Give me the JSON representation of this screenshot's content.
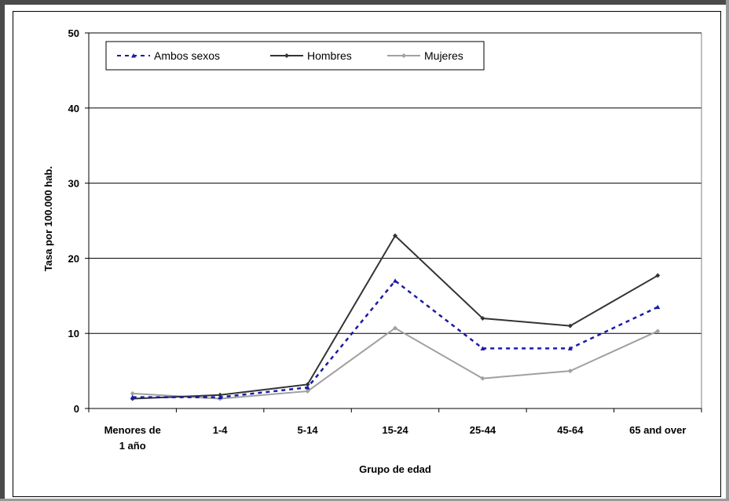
{
  "chart_data": {
    "type": "line",
    "xlabel": "Grupo de edad",
    "ylabel": "Tasa por 100.000 hab.",
    "ylim": [
      0,
      50
    ],
    "yticks": [
      0,
      10,
      20,
      30,
      40,
      50
    ],
    "categories": [
      [
        "Menores de",
        "1 año"
      ],
      [
        "1-4"
      ],
      [
        "5-14"
      ],
      [
        "15-24"
      ],
      [
        "25-44"
      ],
      [
        "45-64"
      ],
      [
        "65 and over"
      ]
    ],
    "grid": "horizontal",
    "legend_position": "top-left",
    "series": [
      {
        "name": "Ambos sexos",
        "color": "#1a1aa6",
        "style": "dashed",
        "marker": "triangle",
        "values": [
          1.5,
          1.5,
          2.8,
          17.0,
          8.0,
          8.0,
          13.5
        ]
      },
      {
        "name": "Hombres",
        "color": "#333333",
        "style": "solid",
        "marker": "diamond",
        "values": [
          1.3,
          1.8,
          3.2,
          23.0,
          12.0,
          11.0,
          17.7
        ]
      },
      {
        "name": "Mujeres",
        "color": "#a0a0a0",
        "style": "solid",
        "marker": "diamond",
        "values": [
          2.0,
          1.3,
          2.3,
          10.7,
          4.0,
          5.0,
          10.3
        ]
      }
    ]
  }
}
